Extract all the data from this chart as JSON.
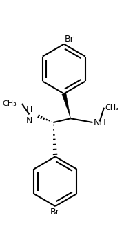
{
  "bg_color": "#ffffff",
  "line_color": "#000000",
  "line_width": 1.5,
  "font_size": 9,
  "fig_width": 1.8,
  "fig_height": 3.57,
  "dpi": 100,
  "xlim": [
    0,
    9
  ],
  "ylim": [
    0,
    17.85
  ]
}
